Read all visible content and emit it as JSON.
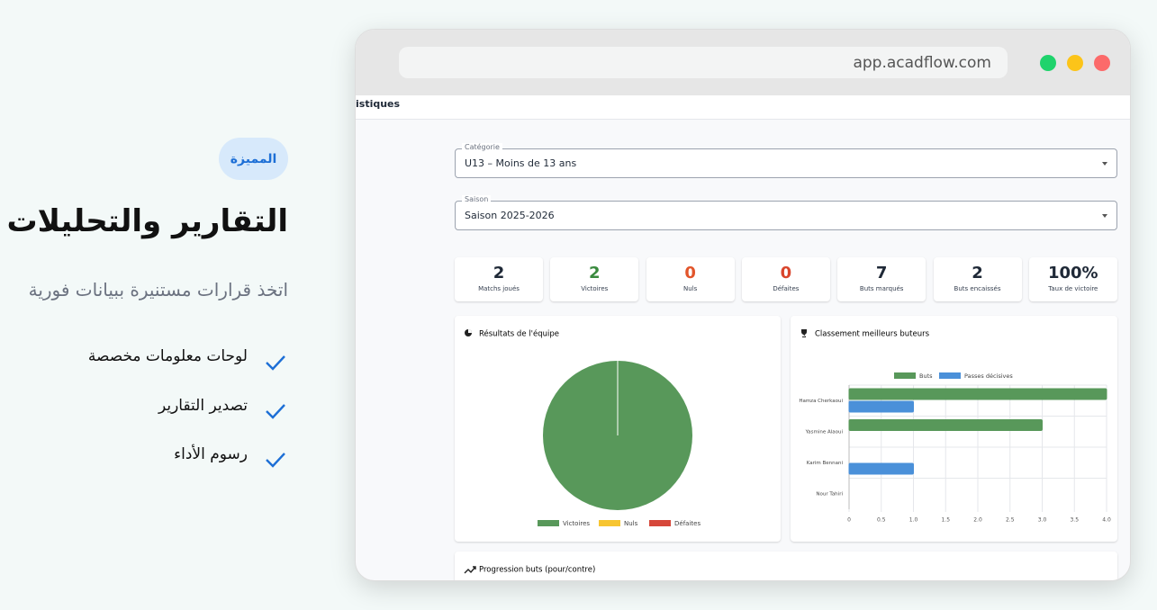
{
  "browser": {
    "url": "app.acadflow.com"
  },
  "hero": {
    "badge": "المميزة",
    "title": "التقارير والتحليلات",
    "subtitle": "اتخذ قرارات مستنيرة ببيانات فورية",
    "features": [
      "لوحات معلومات مخصصة",
      "تصدير التقارير",
      "رسوم الأداء"
    ]
  },
  "app": {
    "tab": "istiques",
    "filters": [
      {
        "label": "Catégorie",
        "value": "U13 – Moins de 13 ans"
      },
      {
        "label": "Saison",
        "value": "Saison 2025-2026"
      }
    ],
    "stats": [
      {
        "value": "2",
        "label": "Matchs joués",
        "color": "#1f2937"
      },
      {
        "value": "2",
        "label": "Victoires",
        "color": "#3a8a3e"
      },
      {
        "value": "0",
        "label": "Nuls",
        "color": "#e2552b"
      },
      {
        "value": "0",
        "label": "Défaites",
        "color": "#d9452c"
      },
      {
        "value": "7",
        "label": "Buts marqués",
        "color": "#1f2937"
      },
      {
        "value": "2",
        "label": "Buts encaissés",
        "color": "#1f2937"
      },
      {
        "value": "100%",
        "label": "Taux de victoire",
        "color": "#1f2937"
      }
    ],
    "results_chart": {
      "type": "pie",
      "title": "Résultats de l'équipe",
      "categories": [
        "Victoires",
        "Nuls",
        "Défaites"
      ],
      "values": [
        2,
        0,
        0
      ],
      "colors": [
        "#58985a",
        "#f7c531",
        "#d6473a"
      ]
    },
    "scorers_chart": {
      "type": "bar",
      "orientation": "horizontal",
      "title": "Classement meilleurs buteurs",
      "categories": [
        "Hamza Cherkaoui",
        "Yasmine Alaoui",
        "Karim Bennani",
        "Nour Tahiri"
      ],
      "series": [
        {
          "name": "Buts",
          "color": "#58985a",
          "values": [
            4,
            3,
            0,
            0
          ]
        },
        {
          "name": "Passes décisives",
          "color": "#4a90d9",
          "values": [
            1,
            0,
            1,
            0
          ]
        }
      ],
      "xlim": [
        0,
        4
      ],
      "xticks": [
        0,
        0.5,
        {
          "value": 1,
          "label": "1.0"
        },
        1.5,
        {
          "value": 2,
          "label": "2.0"
        },
        2.5,
        {
          "value": 3,
          "label": "3.0"
        },
        3.5,
        {
          "value": 4,
          "label": "4.0"
        }
      ],
      "grid": true
    },
    "progress_title": "Progression buts (pour/contre)"
  }
}
